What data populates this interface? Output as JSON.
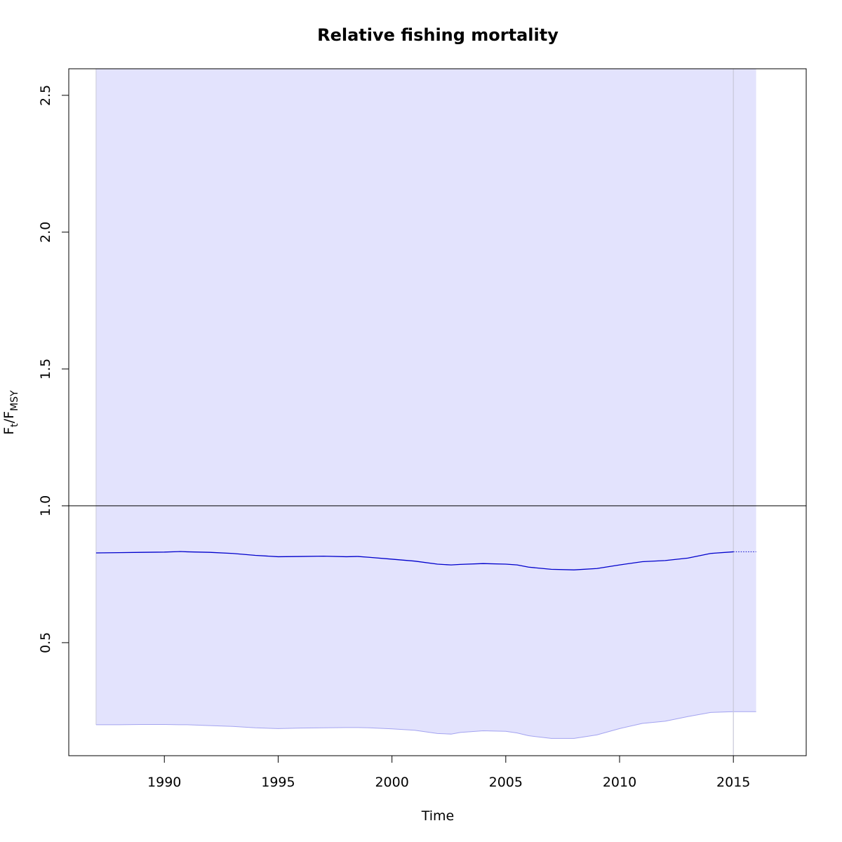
{
  "chart_data": {
    "type": "line",
    "title": "Relative fishing mortality",
    "xlabel": "Time",
    "ylabel": {
      "main": "F",
      "sub1": "t",
      "sep": "/F",
      "sub2": "MSY"
    },
    "xlim": [
      1985.8,
      2018.2
    ],
    "ylim": [
      0.087,
      2.597
    ],
    "x_ticks": [
      1990,
      1995,
      2000,
      2005,
      2010,
      2015
    ],
    "x_tick_labels": [
      "1990",
      "1995",
      "2000",
      "2005",
      "2010",
      "2015"
    ],
    "y_ticks": [
      0.5,
      1.0,
      1.5,
      2.0,
      2.5
    ],
    "y_tick_labels": [
      "0.5",
      "1.0",
      "1.5",
      "2.0",
      "2.5"
    ],
    "reference_line": 1.0,
    "last_observation": 2015,
    "grid": false,
    "colors": {
      "estimate": "#0000cc",
      "ci_fill": "#e3e3fd",
      "ci_edge": "#a3a3f0",
      "reference": "#000000",
      "vline": "#c8c8d8"
    },
    "series": [
      {
        "x": [
          1987,
          1988,
          1989,
          1990,
          1990.7,
          1991,
          1992,
          1993,
          1994,
          1995,
          1996,
          1997,
          1998,
          1998.5,
          1999,
          2000,
          2001,
          2002,
          2002.6,
          2003,
          2004,
          2005,
          2005.5,
          2006,
          2007,
          2008,
          2009,
          2010,
          2011,
          2012,
          2013,
          2014,
          2015
        ],
        "values": [
          0.828,
          0.829,
          0.83,
          0.831,
          0.833,
          0.832,
          0.83,
          0.826,
          0.819,
          0.814,
          0.815,
          0.816,
          0.814,
          0.815,
          0.812,
          0.805,
          0.798,
          0.787,
          0.784,
          0.786,
          0.789,
          0.787,
          0.784,
          0.776,
          0.768,
          0.766,
          0.771,
          0.784,
          0.796,
          0.8,
          0.809,
          0.826,
          0.832
        ],
        "lower": [
          0.2,
          0.2,
          0.201,
          0.201,
          0.2,
          0.2,
          0.197,
          0.194,
          0.189,
          0.186,
          0.188,
          0.189,
          0.19,
          0.19,
          0.189,
          0.185,
          0.18,
          0.168,
          0.166,
          0.172,
          0.178,
          0.176,
          0.17,
          0.16,
          0.15,
          0.15,
          0.163,
          0.186,
          0.205,
          0.213,
          0.23,
          0.245,
          0.248
        ],
        "upper": [
          2.597,
          2.597,
          2.597,
          2.597,
          2.597,
          2.597,
          2.597,
          2.597,
          2.597,
          2.597,
          2.597,
          2.597,
          2.597,
          2.597,
          2.597,
          2.597,
          2.597,
          2.597,
          2.597,
          2.597,
          2.597,
          2.597,
          2.597,
          2.597,
          2.597,
          2.597,
          2.597,
          2.597,
          2.597,
          2.597,
          2.597,
          2.597,
          2.597
        ]
      }
    ],
    "prediction": {
      "x": [
        2015,
        2016
      ],
      "values": [
        0.832,
        0.832
      ],
      "lower": [
        0.248,
        0.248
      ],
      "upper": [
        2.597,
        2.597
      ]
    }
  }
}
